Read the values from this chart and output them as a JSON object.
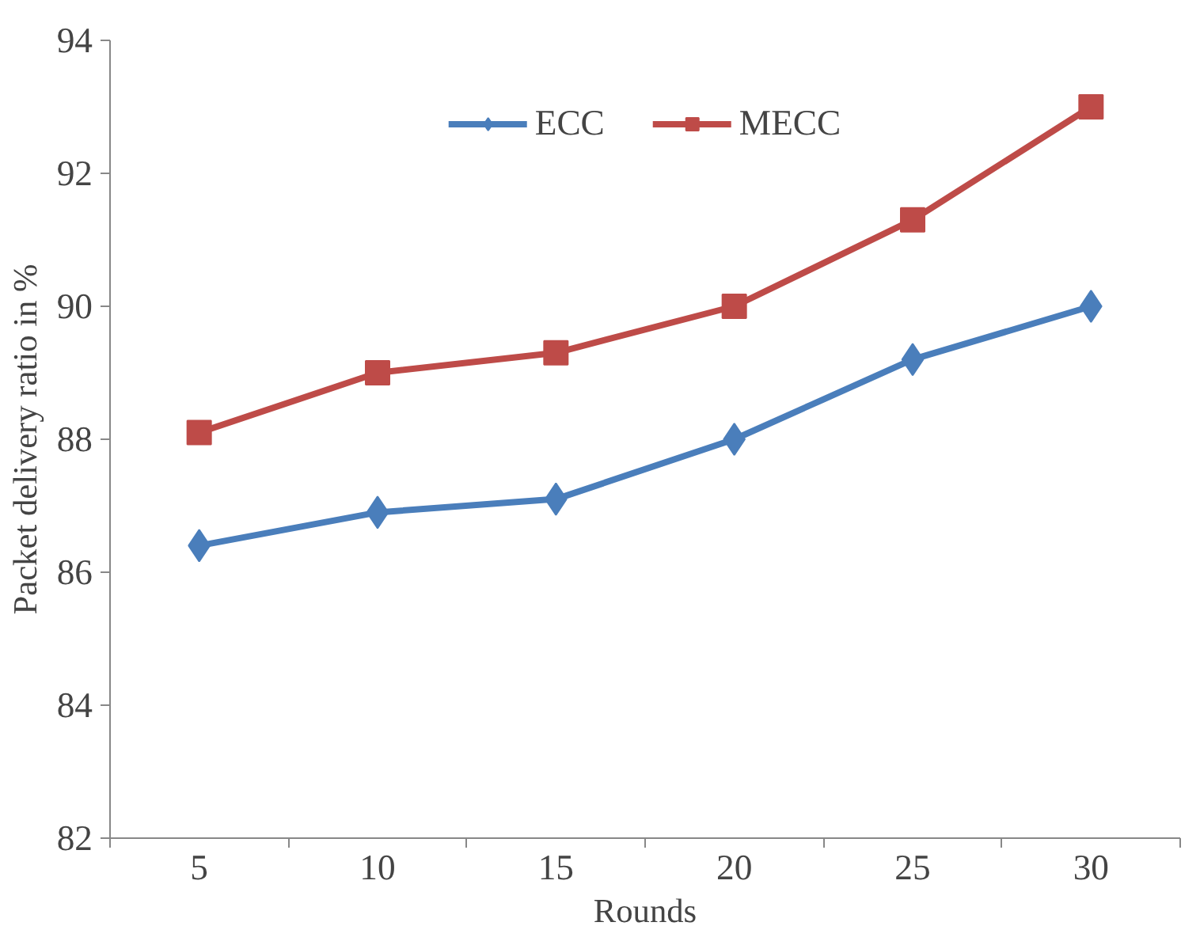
{
  "chart_data": {
    "type": "line",
    "xlabel": "Rounds",
    "ylabel": "Packet delivery ratio in %",
    "categories": [
      "5",
      "10",
      "15",
      "20",
      "25",
      "30"
    ],
    "series": [
      {
        "name": "ECC",
        "color": "#4a7ebb",
        "values": [
          86.4,
          86.9,
          87.1,
          88.0,
          89.2,
          90.0
        ],
        "marker": "diamond"
      },
      {
        "name": "MECC",
        "color": "#be4b48",
        "values": [
          88.1,
          89.0,
          89.3,
          90.0,
          91.3,
          93.0
        ],
        "marker": "square"
      }
    ],
    "ylim": [
      82,
      94
    ],
    "yticks": [
      82,
      84,
      86,
      88,
      90,
      92,
      94
    ],
    "grid": false,
    "legend": "top",
    "line_style": "solid"
  }
}
